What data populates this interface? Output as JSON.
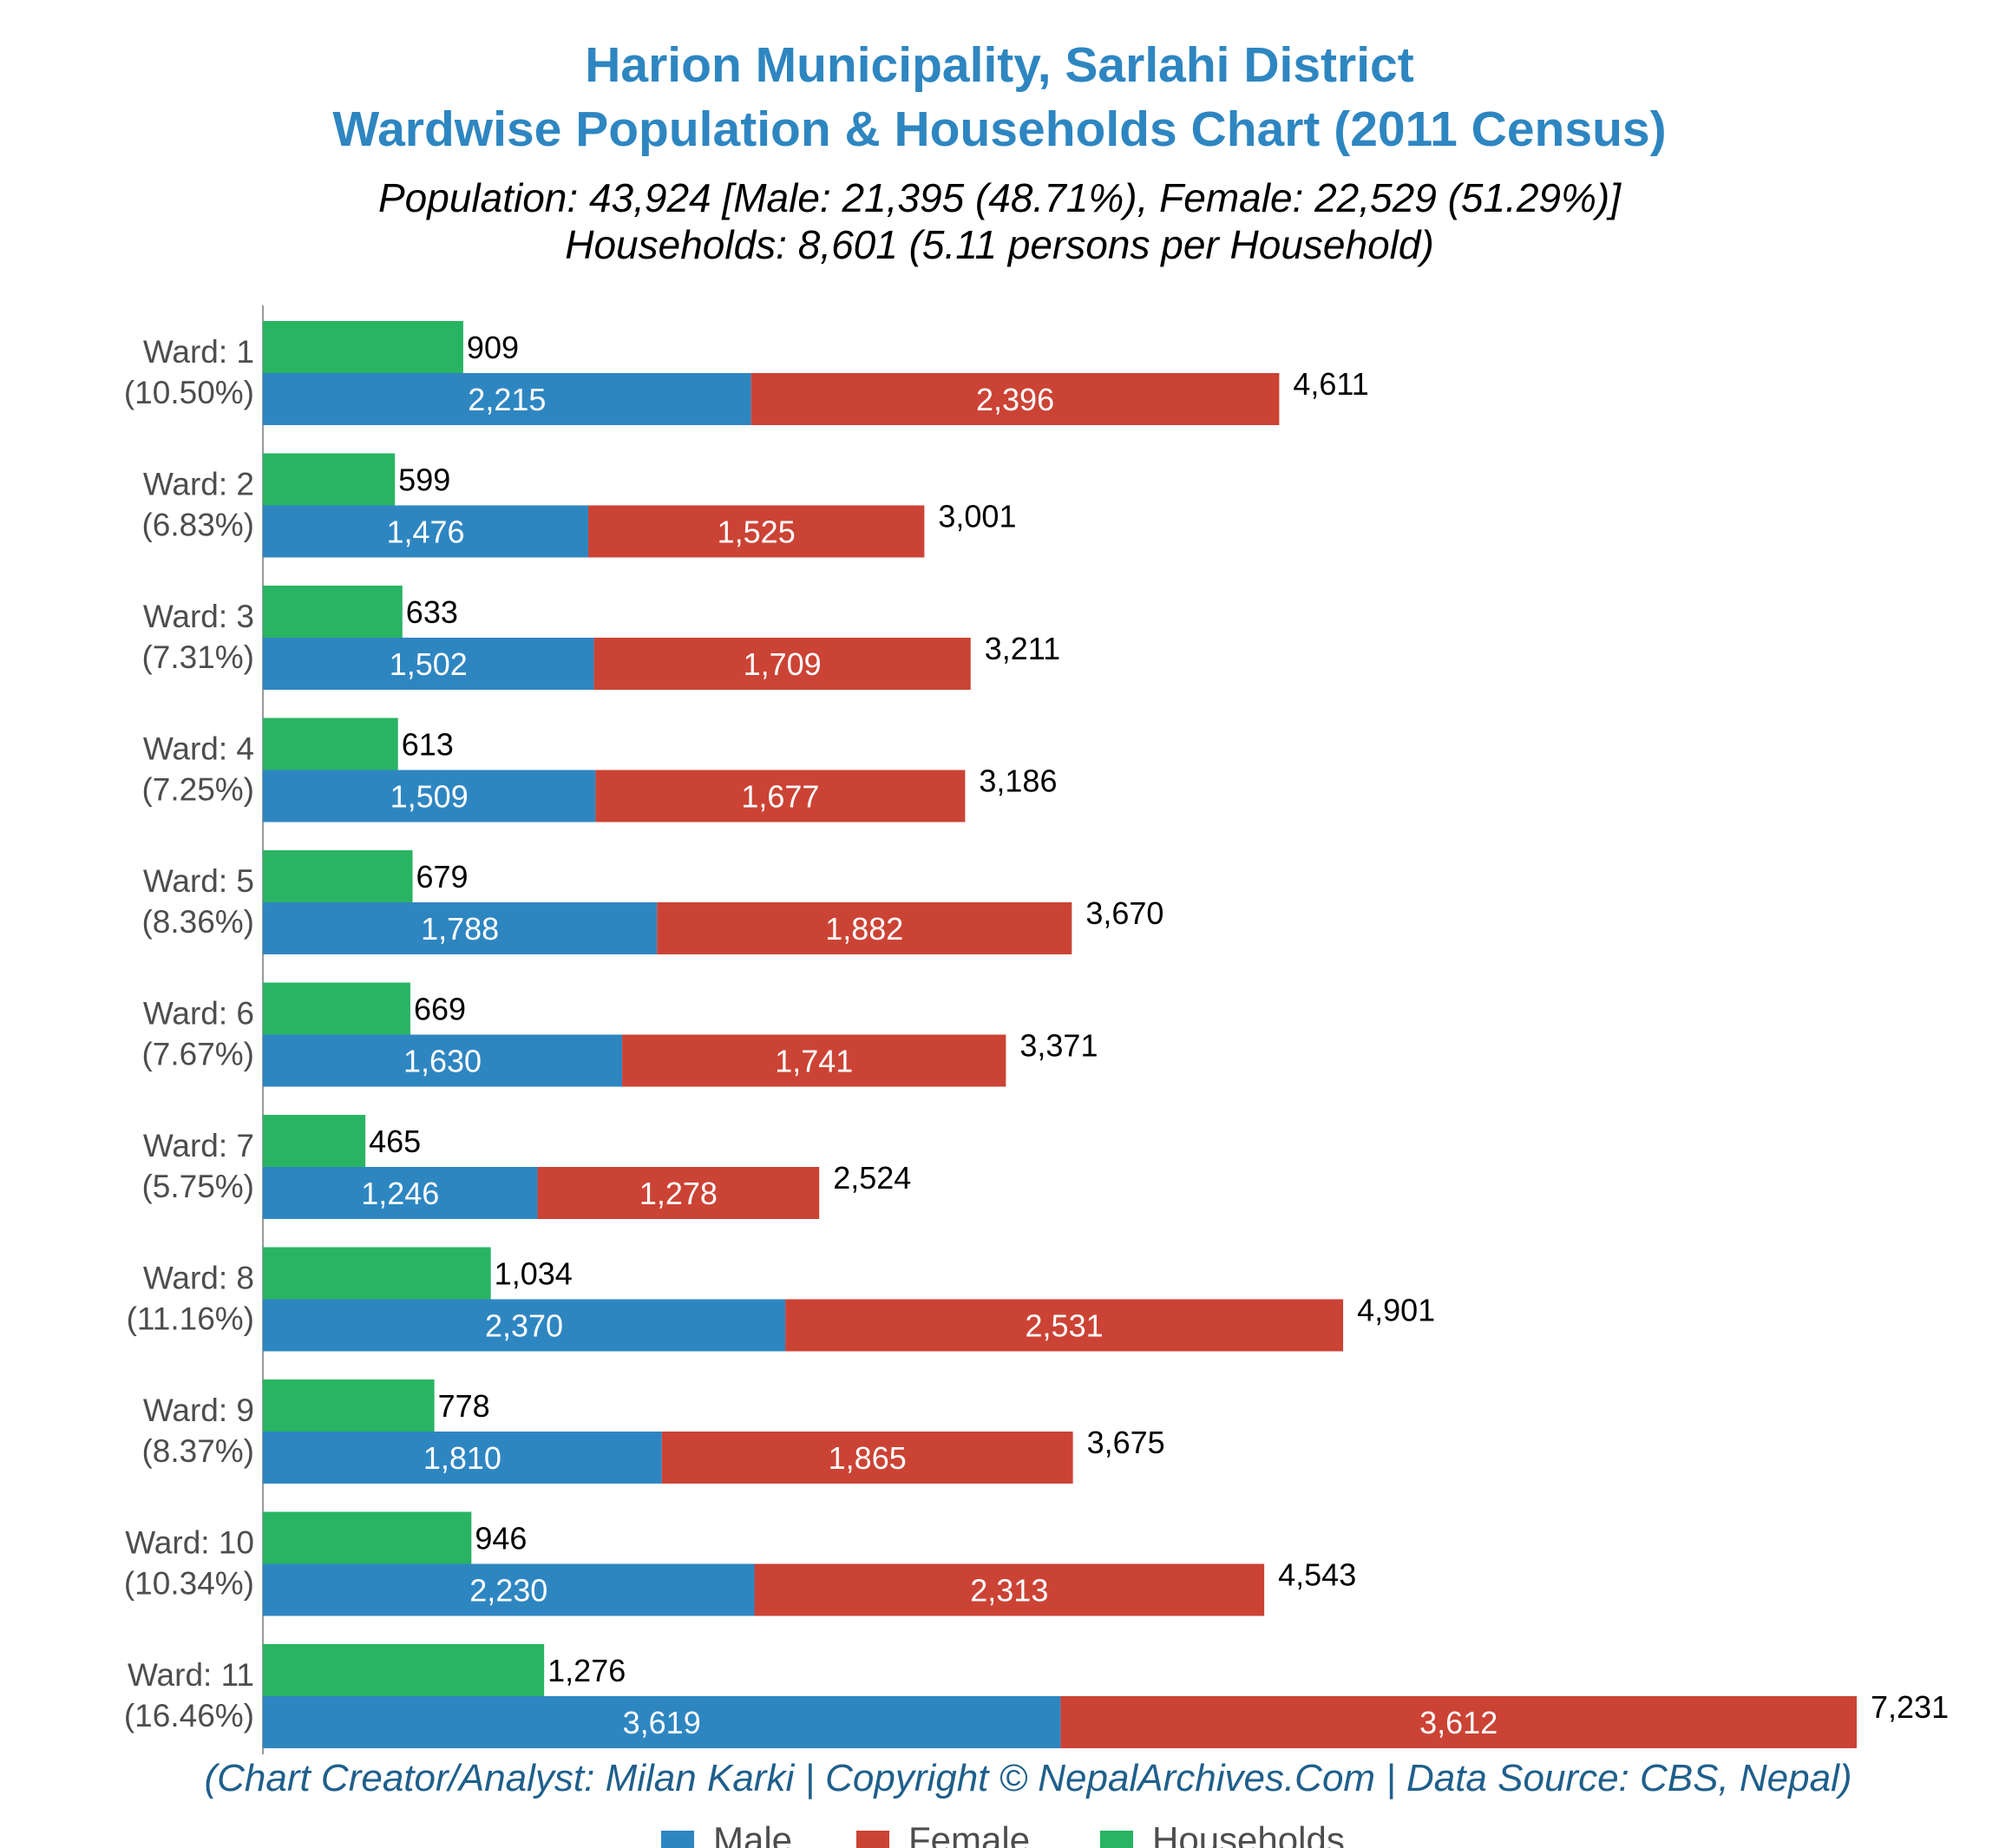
{
  "title_line1": "Harion Municipality, Sarlahi District",
  "title_line2": "Wardwise Population & Households Chart (2011 Census)",
  "subtitle_line1": "Population: 43,924 [Male: 21,395 (48.71%), Female: 22,529 (51.29%)]",
  "subtitle_line2": "Households: 8,601 (5.11 persons per Household)",
  "credit": "(Chart Creator/Analyst: Milan Karki | Copyright © NepalArchives.Com | Data Source: CBS, Nepal)",
  "colors": {
    "male": "#2e86c1",
    "female": "#cb4335",
    "households": "#28b463",
    "title": "#2e86c1"
  },
  "chart_data": {
    "type": "bar",
    "orientation": "horizontal",
    "categories": [
      "Ward: 1",
      "Ward: 2",
      "Ward: 3",
      "Ward: 4",
      "Ward: 5",
      "Ward: 6",
      "Ward: 7",
      "Ward: 8",
      "Ward: 9",
      "Ward: 10",
      "Ward: 11"
    ],
    "category_shares": [
      "(10.50%)",
      "(6.83%)",
      "(7.31%)",
      "(7.25%)",
      "(8.36%)",
      "(7.67%)",
      "(5.75%)",
      "(11.16%)",
      "(8.37%)",
      "(10.34%)",
      "(16.46%)"
    ],
    "series": [
      {
        "name": "Male",
        "stack": "population",
        "color": "#2e86c1",
        "values": [
          2215,
          1476,
          1502,
          1509,
          1788,
          1630,
          1246,
          2370,
          1810,
          2230,
          3619
        ]
      },
      {
        "name": "Female",
        "stack": "population",
        "color": "#cb4335",
        "values": [
          2396,
          1525,
          1709,
          1677,
          1882,
          1741,
          1278,
          2531,
          1865,
          2313,
          3612
        ]
      },
      {
        "name": "Households",
        "stack": "households",
        "color": "#28b463",
        "values": [
          909,
          599,
          633,
          613,
          679,
          669,
          465,
          1034,
          778,
          946,
          1276
        ]
      }
    ],
    "totals": [
      4611,
      3001,
      3211,
      3186,
      3670,
      3371,
      2524,
      4901,
      3675,
      4543,
      7231
    ],
    "xlim": [
      0,
      7231
    ],
    "grid": false,
    "legend": [
      "Male",
      "Female",
      "Households"
    ],
    "legend_position": "bottom"
  }
}
